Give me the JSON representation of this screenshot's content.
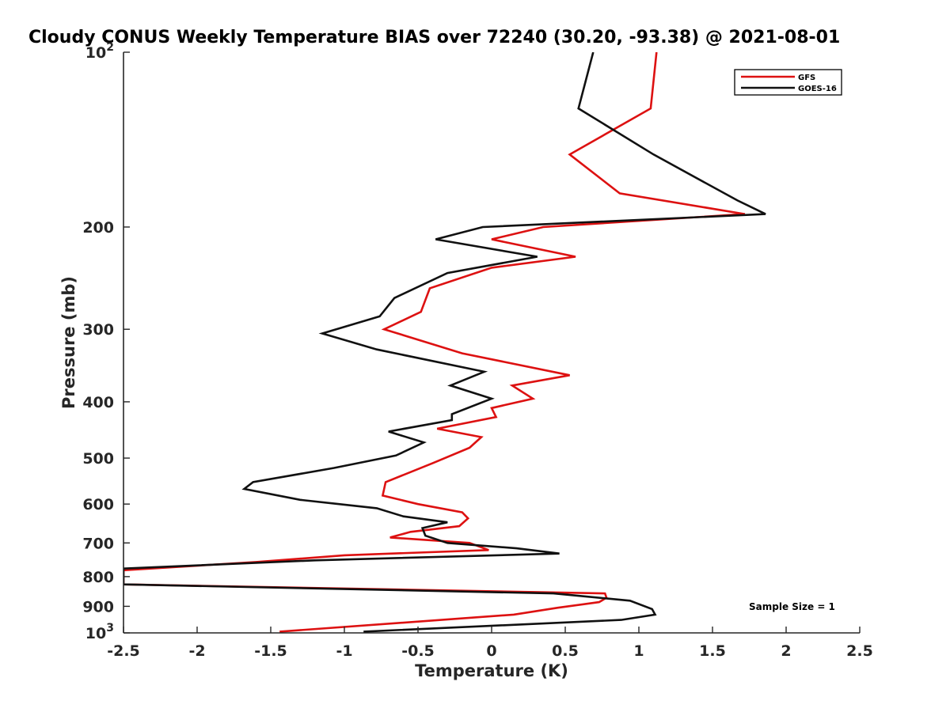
{
  "chart_data": {
    "type": "line",
    "title": "Cloudy CONUS Weekly Temperature BIAS over 72240 (30.20, -93.38) @ 2021-08-01",
    "xlabel": "Temperature (K)",
    "ylabel": "Pressure (mb)",
    "xlim": [
      -2.5,
      2.5
    ],
    "ylim": [
      100,
      1000
    ],
    "yscale": "log",
    "yreversed": true,
    "grid": false,
    "legend_position": "top-right",
    "annotation": "Sample Size = 1",
    "x_ticks": [
      {
        "value": -2.5,
        "label": "-2.5"
      },
      {
        "value": -2,
        "label": "-2"
      },
      {
        "value": -1.5,
        "label": "-1.5"
      },
      {
        "value": -1,
        "label": "-1"
      },
      {
        "value": -0.5,
        "label": "-0.5"
      },
      {
        "value": 0,
        "label": "0"
      },
      {
        "value": 0.5,
        "label": "0.5"
      },
      {
        "value": 1,
        "label": "1"
      },
      {
        "value": 1.5,
        "label": "1.5"
      },
      {
        "value": 2,
        "label": "2"
      },
      {
        "value": 2.5,
        "label": "2.5"
      }
    ],
    "y_ticks": [
      {
        "value": 100,
        "base": "10",
        "exp": "2"
      },
      {
        "value": 200,
        "label": "200"
      },
      {
        "value": 300,
        "label": "300"
      },
      {
        "value": 400,
        "label": "400"
      },
      {
        "value": 500,
        "label": "500"
      },
      {
        "value": 600,
        "label": "600"
      },
      {
        "value": 700,
        "label": "700"
      },
      {
        "value": 800,
        "label": "800"
      },
      {
        "value": 900,
        "label": "900"
      },
      {
        "value": 1000,
        "base": "10",
        "exp": "3"
      }
    ],
    "series": [
      {
        "name": "GFS",
        "color": "#dd1111",
        "points": [
          [
            1.12,
            100
          ],
          [
            1.08,
            125
          ],
          [
            0.53,
            150
          ],
          [
            0.87,
            175
          ],
          [
            1.72,
            190
          ],
          [
            0.35,
            200
          ],
          [
            0.0,
            210
          ],
          [
            0.57,
            225
          ],
          [
            0.0,
            235
          ],
          [
            -0.42,
            255
          ],
          [
            -0.48,
            280
          ],
          [
            -0.73,
            300
          ],
          [
            -0.2,
            330
          ],
          [
            0.53,
            360
          ],
          [
            0.14,
            375
          ],
          [
            0.28,
            395
          ],
          [
            0.0,
            410
          ],
          [
            0.03,
            425
          ],
          [
            -0.37,
            445
          ],
          [
            -0.07,
            460
          ],
          [
            -0.15,
            480
          ],
          [
            -0.4,
            510
          ],
          [
            -0.72,
            550
          ],
          [
            -0.74,
            580
          ],
          [
            -0.5,
            600
          ],
          [
            -0.2,
            620
          ],
          [
            -0.16,
            635
          ],
          [
            -0.22,
            655
          ],
          [
            -0.55,
            670
          ],
          [
            -0.69,
            685
          ],
          [
            -0.15,
            700
          ],
          [
            -0.02,
            720
          ],
          [
            -1.0,
            735
          ],
          [
            -1.6,
            755
          ],
          [
            -2.5,
            780
          ],
          [
            -2.5,
            825
          ],
          [
            0.77,
            855
          ],
          [
            0.78,
            870
          ],
          [
            0.73,
            885
          ],
          [
            0.45,
            905
          ],
          [
            0.15,
            930
          ],
          [
            -1.44,
            995
          ]
        ]
      },
      {
        "name": "GOES-16",
        "color": "#111111",
        "points": [
          [
            0.69,
            100
          ],
          [
            0.59,
            125
          ],
          [
            1.1,
            150
          ],
          [
            1.67,
            180
          ],
          [
            1.86,
            190
          ],
          [
            -0.06,
            200
          ],
          [
            -0.38,
            210
          ],
          [
            0.31,
            225
          ],
          [
            -0.3,
            240
          ],
          [
            -0.66,
            265
          ],
          [
            -0.76,
            285
          ],
          [
            -1.15,
            305
          ],
          [
            -0.78,
            325
          ],
          [
            -0.05,
            355
          ],
          [
            -0.28,
            375
          ],
          [
            0.0,
            395
          ],
          [
            -0.27,
            420
          ],
          [
            -0.27,
            430
          ],
          [
            -0.7,
            450
          ],
          [
            -0.46,
            470
          ],
          [
            -0.65,
            495
          ],
          [
            -1.07,
            520
          ],
          [
            -1.62,
            550
          ],
          [
            -1.68,
            565
          ],
          [
            -1.3,
            590
          ],
          [
            -0.78,
            610
          ],
          [
            -0.6,
            630
          ],
          [
            -0.3,
            645
          ],
          [
            -0.47,
            660
          ],
          [
            -0.45,
            680
          ],
          [
            -0.3,
            700
          ],
          [
            0.17,
            715
          ],
          [
            0.46,
            730
          ],
          [
            -1.2,
            750
          ],
          [
            -2.5,
            775
          ],
          [
            -2.5,
            825
          ],
          [
            0.42,
            855
          ],
          [
            0.94,
            880
          ],
          [
            1.09,
            910
          ],
          [
            1.11,
            930
          ],
          [
            0.88,
            950
          ],
          [
            -0.87,
            995
          ]
        ]
      }
    ]
  }
}
